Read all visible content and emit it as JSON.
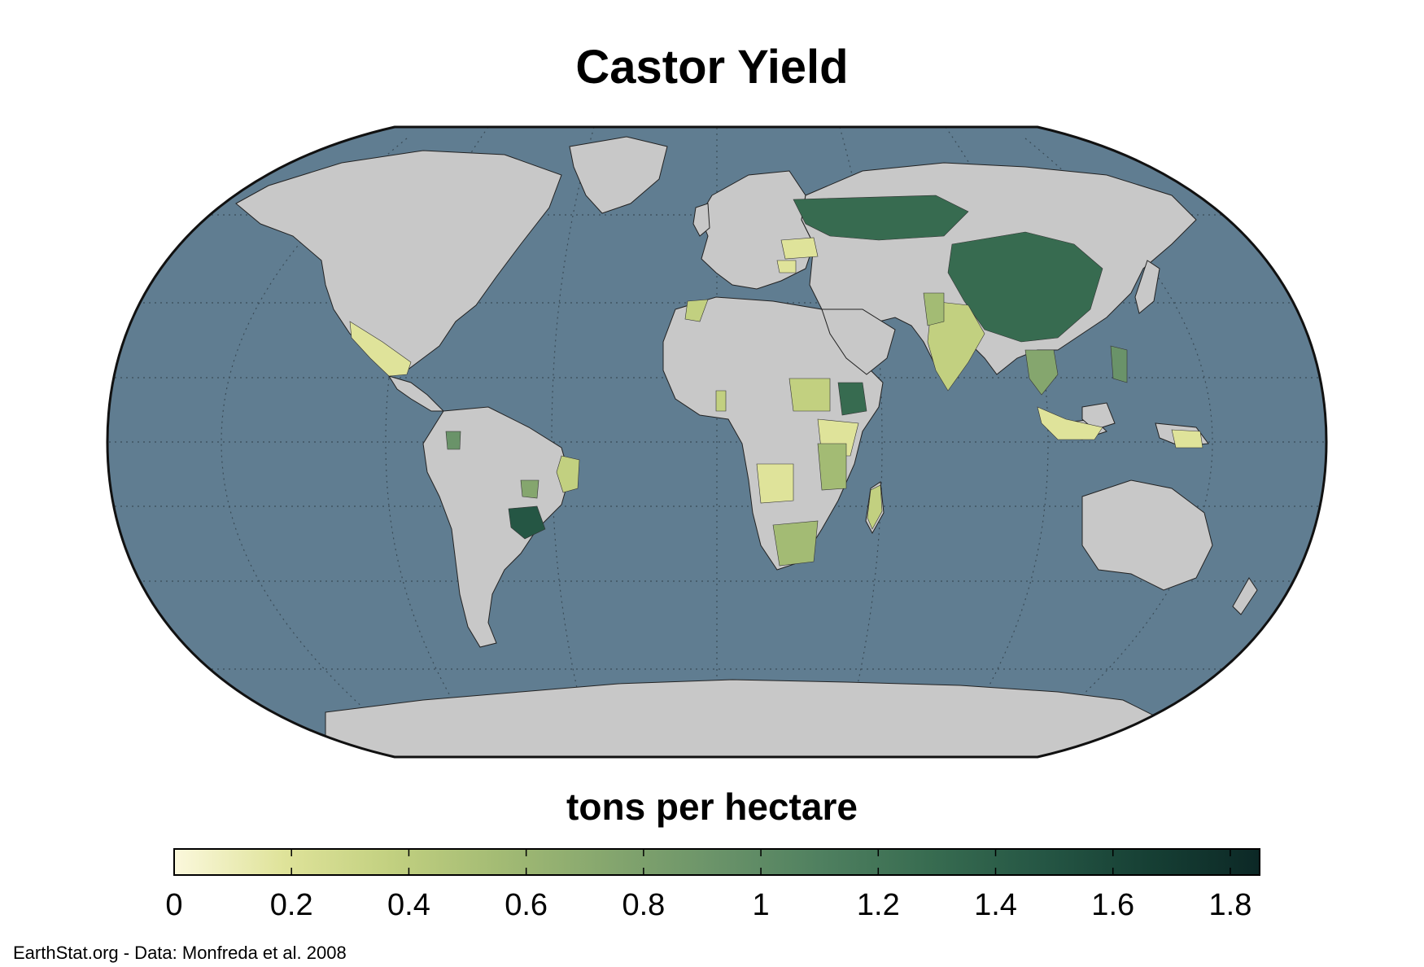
{
  "title": "Castor Yield",
  "legend": {
    "title": "tons per hectare",
    "ticks": [
      "0",
      "0.2",
      "0.4",
      "0.6",
      "0.8",
      "1",
      "1.2",
      "1.4",
      "1.6",
      "1.8"
    ],
    "min": 0,
    "max": 1.85,
    "colors": [
      "#fbf8dc",
      "#dfe39a",
      "#c2d080",
      "#a3bb74",
      "#85a66e",
      "#6a9369",
      "#4e7f5f",
      "#376b50",
      "#255644",
      "#163f34",
      "#0c2826"
    ]
  },
  "map": {
    "ocean_color": "#607d91",
    "land_color": "#c8c8c8",
    "border_color": "#111111",
    "graticule_color": "#3a4c58"
  },
  "credit": "EarthStat.org - Data: Monfreda et al. 2008"
}
